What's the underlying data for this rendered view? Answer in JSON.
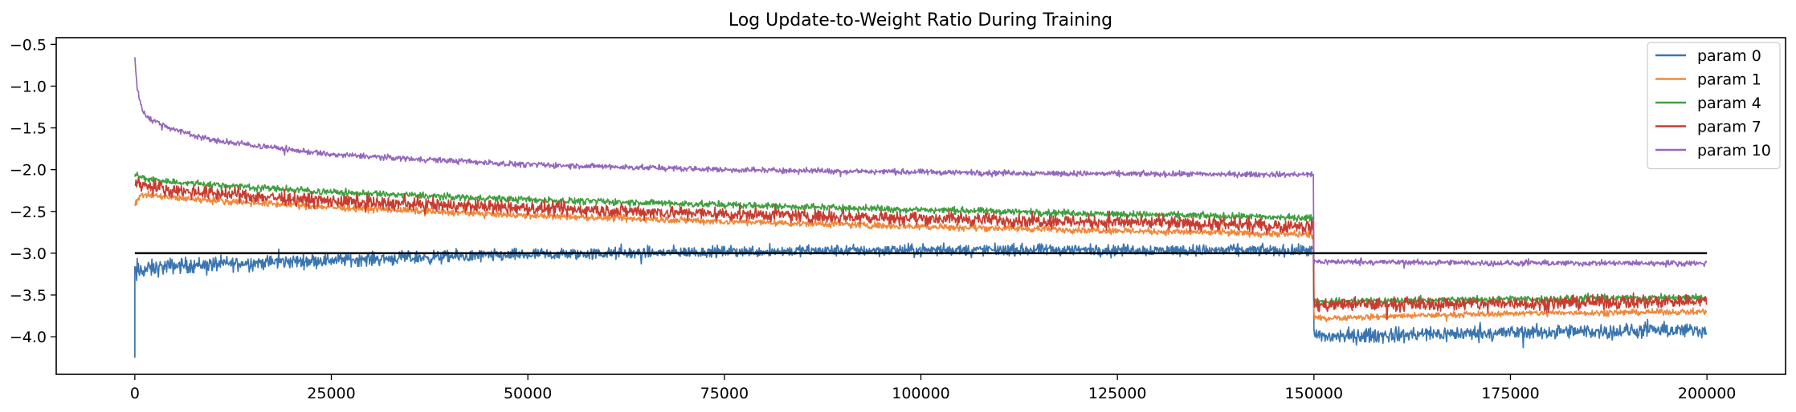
{
  "chart_data": {
    "type": "line",
    "title": "Log Update-to-Weight Ratio During Training",
    "xlabel": "",
    "ylabel": "",
    "xlim": [
      -10000,
      210000
    ],
    "ylim": [
      -4.45,
      -0.42
    ],
    "xticks": [
      0,
      25000,
      50000,
      75000,
      100000,
      125000,
      150000,
      175000,
      200000
    ],
    "xtick_labels": [
      "0",
      "25000",
      "50000",
      "75000",
      "100000",
      "125000",
      "150000",
      "175000",
      "200000"
    ],
    "yticks": [
      -4.0,
      -3.5,
      -3.0,
      -2.5,
      -2.0,
      -1.5,
      -1.0,
      -0.5
    ],
    "ytick_labels": [
      "−4.0",
      "−3.5",
      "−3.0",
      "−2.5",
      "−2.0",
      "−1.5",
      "−1.0",
      "−0.5"
    ],
    "grid": false,
    "legend_position": "top-right",
    "reference_line": {
      "y": -3.0,
      "x_range": [
        0,
        200000
      ],
      "color": "#000000"
    },
    "series": [
      {
        "name": "param 0",
        "color": "#3a75b0",
        "x": [
          0,
          1000,
          5000,
          25000,
          50000,
          75000,
          100000,
          125000,
          149999,
          150001,
          175000,
          200000
        ],
        "mean": [
          -3.25,
          -3.2,
          -3.15,
          -3.08,
          -3.02,
          -2.98,
          -2.96,
          -2.96,
          -2.97,
          -4.0,
          -3.95,
          -3.92
        ],
        "band": [
          0.3,
          0.16,
          0.14,
          0.12,
          0.11,
          0.1,
          0.1,
          0.1,
          0.1,
          0.14,
          0.13,
          0.13
        ]
      },
      {
        "name": "param 1",
        "color": "#f0883a",
        "x": [
          0,
          1000,
          5000,
          25000,
          50000,
          75000,
          100000,
          125000,
          149999,
          150001,
          175000,
          200000
        ],
        "mean": [
          -2.4,
          -2.3,
          -2.34,
          -2.45,
          -2.55,
          -2.62,
          -2.68,
          -2.73,
          -2.78,
          -3.78,
          -3.72,
          -3.7
        ],
        "band": [
          0.08,
          0.06,
          0.06,
          0.06,
          0.06,
          0.06,
          0.06,
          0.06,
          0.06,
          0.05,
          0.05,
          0.05
        ]
      },
      {
        "name": "param 4",
        "color": "#3f9f3f",
        "x": [
          0,
          1000,
          5000,
          25000,
          50000,
          75000,
          100000,
          125000,
          149999,
          150001,
          175000,
          200000
        ],
        "mean": [
          -2.05,
          -2.1,
          -2.15,
          -2.27,
          -2.36,
          -2.42,
          -2.48,
          -2.53,
          -2.58,
          -3.58,
          -3.55,
          -3.53
        ],
        "band": [
          0.06,
          0.06,
          0.06,
          0.06,
          0.06,
          0.06,
          0.06,
          0.06,
          0.06,
          0.06,
          0.06,
          0.06
        ]
      },
      {
        "name": "param 7",
        "color": "#c83c30",
        "x": [
          0,
          1000,
          5000,
          25000,
          50000,
          75000,
          100000,
          125000,
          149999,
          150001,
          175000,
          200000
        ],
        "mean": [
          -2.15,
          -2.18,
          -2.25,
          -2.38,
          -2.46,
          -2.53,
          -2.58,
          -2.63,
          -2.68,
          -3.62,
          -3.6,
          -3.57
        ],
        "band": [
          0.12,
          0.12,
          0.12,
          0.12,
          0.12,
          0.12,
          0.12,
          0.12,
          0.12,
          0.12,
          0.12,
          0.12
        ]
      },
      {
        "name": "param 10",
        "color": "#9467bd",
        "x": [
          0,
          300,
          1000,
          2000,
          5000,
          10000,
          25000,
          50000,
          75000,
          100000,
          125000,
          149999,
          150001,
          175000,
          200000
        ],
        "mean": [
          -0.65,
          -1.05,
          -1.3,
          -1.4,
          -1.52,
          -1.65,
          -1.82,
          -1.94,
          -2.0,
          -2.03,
          -2.05,
          -2.06,
          -3.1,
          -3.12,
          -3.12
        ],
        "band": [
          0.02,
          0.06,
          0.05,
          0.05,
          0.05,
          0.05,
          0.05,
          0.05,
          0.05,
          0.05,
          0.05,
          0.05,
          0.05,
          0.05,
          0.05
        ]
      }
    ]
  }
}
